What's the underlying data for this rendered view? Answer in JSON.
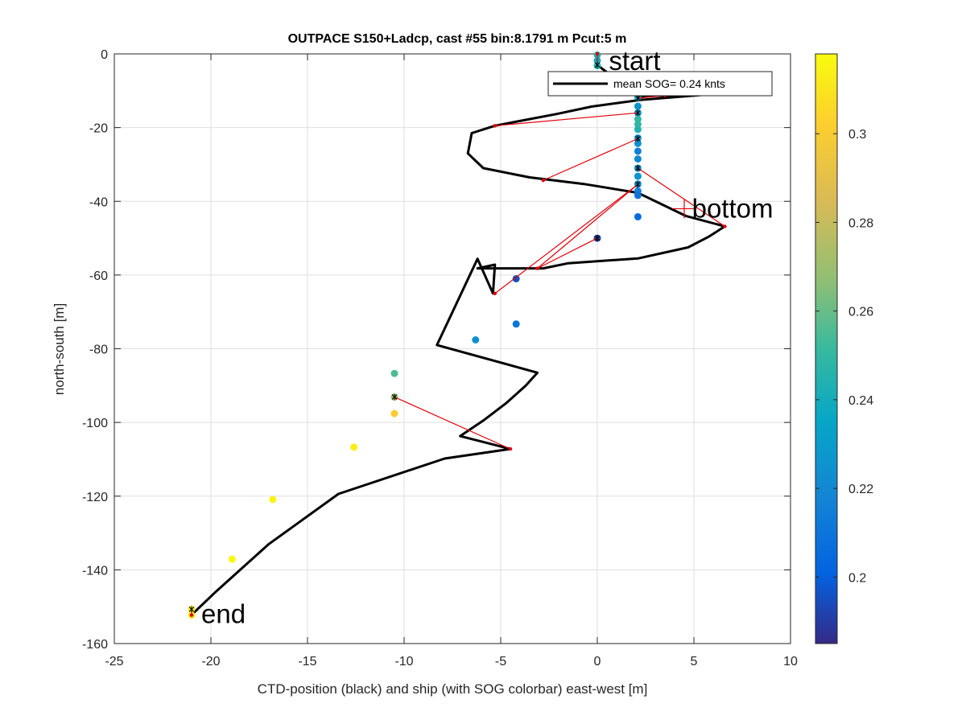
{
  "chart_data": {
    "type": "scatter",
    "title": "OUTPACE S150+Ladcp, cast #55 bin:8.1791 m  Pcut:5 m",
    "xlabel": "CTD-position (black) and ship (with SOG colorbar) east-west [m]",
    "ylabel": "north-south [m]",
    "xlim": [
      -25,
      10
    ],
    "ylim": [
      -160,
      0
    ],
    "xticks": [
      -25,
      -20,
      -15,
      -10,
      -5,
      0,
      5,
      10
    ],
    "yticks": [
      -160,
      -140,
      -120,
      -100,
      -80,
      -60,
      -40,
      -20,
      0
    ],
    "grid": true,
    "legend": {
      "location": "top-right",
      "entries": [
        "mean SOG=  0.24 knts"
      ]
    },
    "colorbar": {
      "range": [
        0.185,
        0.318
      ],
      "ticks": [
        0.2,
        0.22,
        0.24,
        0.26,
        0.28,
        0.3
      ],
      "tick_labels": [
        "0.2",
        "0.22",
        "0.24",
        "0.26",
        "0.28",
        "0.3"
      ]
    },
    "annotations": [
      {
        "text": "start",
        "x": 0.6,
        "y": -2
      },
      {
        "text": "bottom",
        "x": 4.9,
        "y": -42
      },
      {
        "text": "end",
        "x": -20.5,
        "y": -152
      }
    ],
    "ctd_track": {
      "name": "CTD-position",
      "color": "#000000",
      "x": [
        0,
        0,
        2.1,
        3.5,
        5.3,
        2.2,
        -0.3,
        -2.1,
        -5.3,
        -6.5,
        -6.7,
        -5.9,
        -3.5,
        -0.7,
        2.1,
        4.6,
        6.6,
        5.8,
        4.7,
        2.1,
        -1.5,
        -2.8,
        -4.5,
        -5.7,
        -6.2,
        -5.3,
        -5.4,
        -6.2,
        -8.3,
        -3.1,
        -3.7,
        -4.7,
        -5.9,
        -7.1,
        -4.5,
        -7.9,
        -13.4,
        -17,
        -19.8,
        -21
      ],
      "y": [
        0,
        -3,
        -11.5,
        -11.3,
        -11.2,
        -12.5,
        -14.3,
        -16.3,
        -19.5,
        -21.5,
        -27,
        -31,
        -33.5,
        -35.3,
        -37.7,
        -44,
        -46.8,
        -49.5,
        -52.5,
        -55.5,
        -56.8,
        -58.2,
        -58.2,
        -58.2,
        -58.2,
        -57.2,
        -65,
        -55.6,
        -79,
        -86.5,
        -90,
        -94.7,
        -99.5,
        -103.7,
        -107.2,
        -109.8,
        -119.4,
        -133,
        -146.2,
        -152.2
      ]
    },
    "ship_points": [
      {
        "x": 0,
        "y": -0.3,
        "sog": 0.245
      },
      {
        "x": 0,
        "y": -1.8,
        "sog": 0.24
      },
      {
        "x": 0,
        "y": -3.2,
        "sog": 0.245
      },
      {
        "x": 2.1,
        "y": -11.8,
        "sog": 0.235
      },
      {
        "x": 2.1,
        "y": -14.2,
        "sog": 0.225
      },
      {
        "x": 2.1,
        "y": -16,
        "sog": 0.23
      },
      {
        "x": 2.1,
        "y": -17.7,
        "sog": 0.25
      },
      {
        "x": 2.1,
        "y": -19.1,
        "sog": 0.25
      },
      {
        "x": 2.1,
        "y": -20.5,
        "sog": 0.245
      },
      {
        "x": 2.1,
        "y": -22.8,
        "sog": 0.225
      },
      {
        "x": 2.1,
        "y": -24.3,
        "sog": 0.225
      },
      {
        "x": 2.1,
        "y": -26.4,
        "sog": 0.215
      },
      {
        "x": 2.1,
        "y": -28.5,
        "sog": 0.22
      },
      {
        "x": 2.1,
        "y": -31,
        "sog": 0.225
      },
      {
        "x": 2.1,
        "y": -33.2,
        "sog": 0.225
      },
      {
        "x": 2.1,
        "y": -35.3,
        "sog": 0.225
      },
      {
        "x": 2.1,
        "y": -37.2,
        "sog": 0.215
      },
      {
        "x": 2.1,
        "y": -38.4,
        "sog": 0.21
      },
      {
        "x": 2.1,
        "y": -44.2,
        "sog": 0.205
      },
      {
        "x": 0,
        "y": -50,
        "sog": 0.19
      },
      {
        "x": -4.2,
        "y": -61,
        "sog": 0.195
      },
      {
        "x": -4.2,
        "y": -73.3,
        "sog": 0.21
      },
      {
        "x": -6.3,
        "y": -77.6,
        "sog": 0.225
      },
      {
        "x": -10.5,
        "y": -86.7,
        "sog": 0.255
      },
      {
        "x": -10.5,
        "y": -93.1,
        "sog": 0.27
      },
      {
        "x": -10.5,
        "y": -97.6,
        "sog": 0.3
      },
      {
        "x": -12.6,
        "y": -106.7,
        "sog": 0.313
      },
      {
        "x": -16.8,
        "y": -120.9,
        "sog": 0.316
      },
      {
        "x": -18.9,
        "y": -137.1,
        "sog": 0.317
      },
      {
        "x": -21,
        "y": -150.7,
        "sog": 0.312
      },
      {
        "x": -21,
        "y": -152.3,
        "sog": 0.312
      }
    ],
    "black_markers": [
      {
        "x": 0,
        "y": -3
      },
      {
        "x": 2.1,
        "y": -12
      },
      {
        "x": 2.1,
        "y": -16
      },
      {
        "x": 2.1,
        "y": -23
      },
      {
        "x": 2.1,
        "y": -31
      },
      {
        "x": 2.1,
        "y": -35.4
      },
      {
        "x": 0,
        "y": -50
      },
      {
        "x": -10.5,
        "y": -93.1
      },
      {
        "x": -21,
        "y": -150.7
      }
    ],
    "connectors": [
      {
        "x": [
          0,
          0
        ],
        "y": [
          -3,
          0
        ]
      },
      {
        "x": [
          2.1,
          3.5
        ],
        "y": [
          -12,
          -11.3
        ]
      },
      {
        "x": [
          2.1,
          -5.3
        ],
        "y": [
          -16,
          -19.5
        ]
      },
      {
        "x": [
          2.1,
          -2.8
        ],
        "y": [
          -23,
          -34.3
        ]
      },
      {
        "x": [
          2.1,
          6.6
        ],
        "y": [
          -31,
          -46.8
        ]
      },
      {
        "x": [
          2.1,
          -3.1
        ],
        "y": [
          -35.4,
          -58.2
        ]
      },
      {
        "x": [
          0,
          -3.1
        ],
        "y": [
          -50,
          -58.2
        ]
      },
      {
        "x": [
          2.1,
          -5.3
        ],
        "y": [
          -35.4,
          -65
        ]
      },
      {
        "x": [
          -10.5,
          -4.5
        ],
        "y": [
          -93.1,
          -107.2
        ]
      },
      {
        "x": [
          -21,
          -21
        ],
        "y": [
          -150.7,
          -152.3
        ]
      }
    ]
  }
}
